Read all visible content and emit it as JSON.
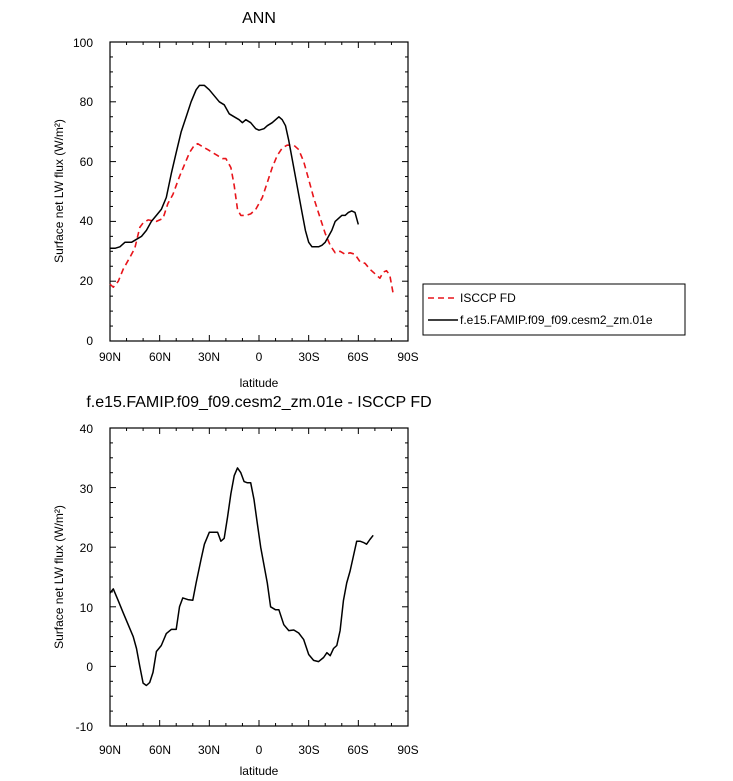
{
  "chart_data": [
    {
      "type": "line",
      "title": "ANN",
      "xlabel": "latitude",
      "ylabel": "Surface net LW flux (W/m²)",
      "ylim": [
        0,
        100
      ],
      "xlim": [
        90,
        -90
      ],
      "xticks": [
        {
          "value": 90,
          "label": "90N"
        },
        {
          "value": 60,
          "label": "60N"
        },
        {
          "value": 30,
          "label": "30N"
        },
        {
          "value": 0,
          "label": "0"
        },
        {
          "value": -30,
          "label": "30S"
        },
        {
          "value": -60,
          "label": "60S"
        },
        {
          "value": -90,
          "label": "90S"
        }
      ],
      "yticks": [
        0,
        20,
        40,
        60,
        80,
        100
      ],
      "legend_position": "right",
      "series": [
        {
          "name": "ISCCP FD",
          "style": "dashed",
          "color": "#e8141a",
          "points": [
            [
              90,
              19
            ],
            [
              88,
              18
            ],
            [
              85,
              20
            ],
            [
              82,
              24
            ],
            [
              78,
              28
            ],
            [
              75,
              31
            ],
            [
              72,
              38
            ],
            [
              70,
              39.5
            ],
            [
              67,
              40.5
            ],
            [
              62,
              40
            ],
            [
              58,
              41
            ],
            [
              55,
              46
            ],
            [
              52,
              49
            ],
            [
              48,
              55
            ],
            [
              45,
              59
            ],
            [
              42,
              63
            ],
            [
              39,
              65.5
            ],
            [
              37,
              66
            ],
            [
              34,
              65
            ],
            [
              31,
              64
            ],
            [
              28,
              63
            ],
            [
              25,
              62
            ],
            [
              22,
              61
            ],
            [
              20,
              61
            ],
            [
              17,
              58
            ],
            [
              15,
              52
            ],
            [
              13,
              44
            ],
            [
              11,
              42
            ],
            [
              8,
              42
            ],
            [
              5,
              42.5
            ],
            [
              2,
              44
            ],
            [
              -2,
              48
            ],
            [
              -5,
              53
            ],
            [
              -8,
              58
            ],
            [
              -11,
              62
            ],
            [
              -14,
              64.5
            ],
            [
              -17,
              65.5
            ],
            [
              -21,
              65.5
            ],
            [
              -24,
              64
            ],
            [
              -27,
              60
            ],
            [
              -30,
              54
            ],
            [
              -33,
              48
            ],
            [
              -37,
              41
            ],
            [
              -40,
              36
            ],
            [
              -43,
              32
            ],
            [
              -46,
              29.5
            ],
            [
              -49,
              30
            ],
            [
              -52,
              29
            ],
            [
              -55,
              29.5
            ],
            [
              -58,
              29
            ],
            [
              -61,
              26.5
            ],
            [
              -64,
              26
            ],
            [
              -67,
              24
            ],
            [
              -70,
              22.5
            ],
            [
              -73,
              21
            ],
            [
              -75,
              23
            ],
            [
              -77,
              23.5
            ],
            [
              -79,
              22
            ],
            [
              -81,
              16
            ]
          ]
        },
        {
          "name": "f.e15.FAMIP.f09_f09.cesm2_zm.01e",
          "style": "solid",
          "color": "#000000",
          "points": [
            [
              90,
              31
            ],
            [
              87,
              31
            ],
            [
              84,
              31.5
            ],
            [
              81,
              33
            ],
            [
              77,
              33
            ],
            [
              74,
              34
            ],
            [
              71,
              35
            ],
            [
              68,
              37
            ],
            [
              65,
              40
            ],
            [
              62,
              42
            ],
            [
              59,
              44
            ],
            [
              56,
              48
            ],
            [
              53,
              56
            ],
            [
              50,
              63
            ],
            [
              47,
              70
            ],
            [
              44,
              75
            ],
            [
              41,
              80
            ],
            [
              38,
              84
            ],
            [
              36,
              85.5
            ],
            [
              33,
              85.5
            ],
            [
              30,
              84
            ],
            [
              27,
              82
            ],
            [
              24,
              80
            ],
            [
              21,
              79
            ],
            [
              18,
              76
            ],
            [
              15,
              75
            ],
            [
              12,
              74
            ],
            [
              10,
              73
            ],
            [
              8,
              74
            ],
            [
              5,
              73
            ],
            [
              2,
              71
            ],
            [
              0,
              70.5
            ],
            [
              -3,
              71
            ],
            [
              -5,
              72
            ],
            [
              -8,
              73
            ],
            [
              -10,
              74
            ],
            [
              -12,
              75
            ],
            [
              -14,
              74
            ],
            [
              -16,
              72
            ],
            [
              -18,
              67
            ],
            [
              -20,
              61
            ],
            [
              -22,
              55
            ],
            [
              -24,
              49
            ],
            [
              -26,
              43
            ],
            [
              -28,
              37
            ],
            [
              -30,
              33
            ],
            [
              -32,
              31.5
            ],
            [
              -34,
              31.5
            ],
            [
              -36,
              31.5
            ],
            [
              -38,
              32
            ],
            [
              -40,
              33
            ],
            [
              -42,
              35
            ],
            [
              -44,
              37
            ],
            [
              -46,
              40
            ],
            [
              -48,
              41
            ],
            [
              -50,
              42
            ],
            [
              -52,
              42
            ],
            [
              -54,
              43
            ],
            [
              -56,
              43.5
            ],
            [
              -58,
              43
            ],
            [
              -60,
              39
            ]
          ]
        }
      ]
    },
    {
      "type": "line",
      "title": "f.e15.FAMIP.f09_f09.cesm2_zm.01e - ISCCP FD",
      "xlabel": "latitude",
      "ylabel": "Surface net LW flux (W/m²)",
      "ylim": [
        -10,
        40
      ],
      "xlim": [
        90,
        -90
      ],
      "xticks": [
        {
          "value": 90,
          "label": "90N"
        },
        {
          "value": 60,
          "label": "60N"
        },
        {
          "value": 30,
          "label": "30N"
        },
        {
          "value": 0,
          "label": "0"
        },
        {
          "value": -30,
          "label": "30S"
        },
        {
          "value": -60,
          "label": "60S"
        },
        {
          "value": -90,
          "label": "90S"
        }
      ],
      "yticks": [
        -10,
        0,
        10,
        20,
        30,
        40
      ],
      "series": [
        {
          "style": "solid",
          "color": "#000000",
          "points": [
            [
              90,
              12.3
            ],
            [
              88,
              13
            ],
            [
              85,
              11
            ],
            [
              82,
              9
            ],
            [
              79,
              7
            ],
            [
              76,
              5
            ],
            [
              74,
              3
            ],
            [
              72,
              0
            ],
            [
              70,
              -2.8
            ],
            [
              68,
              -3.2
            ],
            [
              66,
              -2.7
            ],
            [
              64,
              -1
            ],
            [
              62,
              2.5
            ],
            [
              59,
              3.5
            ],
            [
              56,
              5.5
            ],
            [
              53,
              6.2
            ],
            [
              50,
              6.2
            ],
            [
              48,
              10
            ],
            [
              46,
              11.5
            ],
            [
              43,
              11.2
            ],
            [
              40,
              11.1
            ],
            [
              38,
              14
            ],
            [
              35,
              18
            ],
            [
              33,
              20.5
            ],
            [
              30,
              22.5
            ],
            [
              27,
              22.5
            ],
            [
              25,
              22.5
            ],
            [
              23,
              21
            ],
            [
              21,
              21.5
            ],
            [
              19,
              25
            ],
            [
              17,
              29
            ],
            [
              15,
              32
            ],
            [
              13,
              33.3
            ],
            [
              11,
              32.5
            ],
            [
              9,
              31
            ],
            [
              7,
              30.8
            ],
            [
              5,
              30.8
            ],
            [
              3,
              28
            ],
            [
              1,
              24
            ],
            [
              -1,
              20
            ],
            [
              -3,
              17
            ],
            [
              -5,
              14
            ],
            [
              -7,
              10
            ],
            [
              -10,
              9.5
            ],
            [
              -12,
              9.5
            ],
            [
              -15,
              7
            ],
            [
              -18,
              6
            ],
            [
              -21,
              6.1
            ],
            [
              -24,
              5.6
            ],
            [
              -27,
              4.5
            ],
            [
              -30,
              2
            ],
            [
              -33,
              1
            ],
            [
              -36,
              0.8
            ],
            [
              -39,
              1.5
            ],
            [
              -41,
              2.3
            ],
            [
              -43,
              1.8
            ],
            [
              -45,
              3
            ],
            [
              -47,
              3.5
            ],
            [
              -49,
              6
            ],
            [
              -51,
              11
            ],
            [
              -53,
              14
            ],
            [
              -55,
              16
            ],
            [
              -57,
              18.5
            ],
            [
              -59,
              21
            ],
            [
              -61,
              21
            ],
            [
              -63,
              20.8
            ],
            [
              -65,
              20.5
            ],
            [
              -67,
              21.3
            ],
            [
              -69,
              22
            ]
          ]
        }
      ]
    }
  ]
}
